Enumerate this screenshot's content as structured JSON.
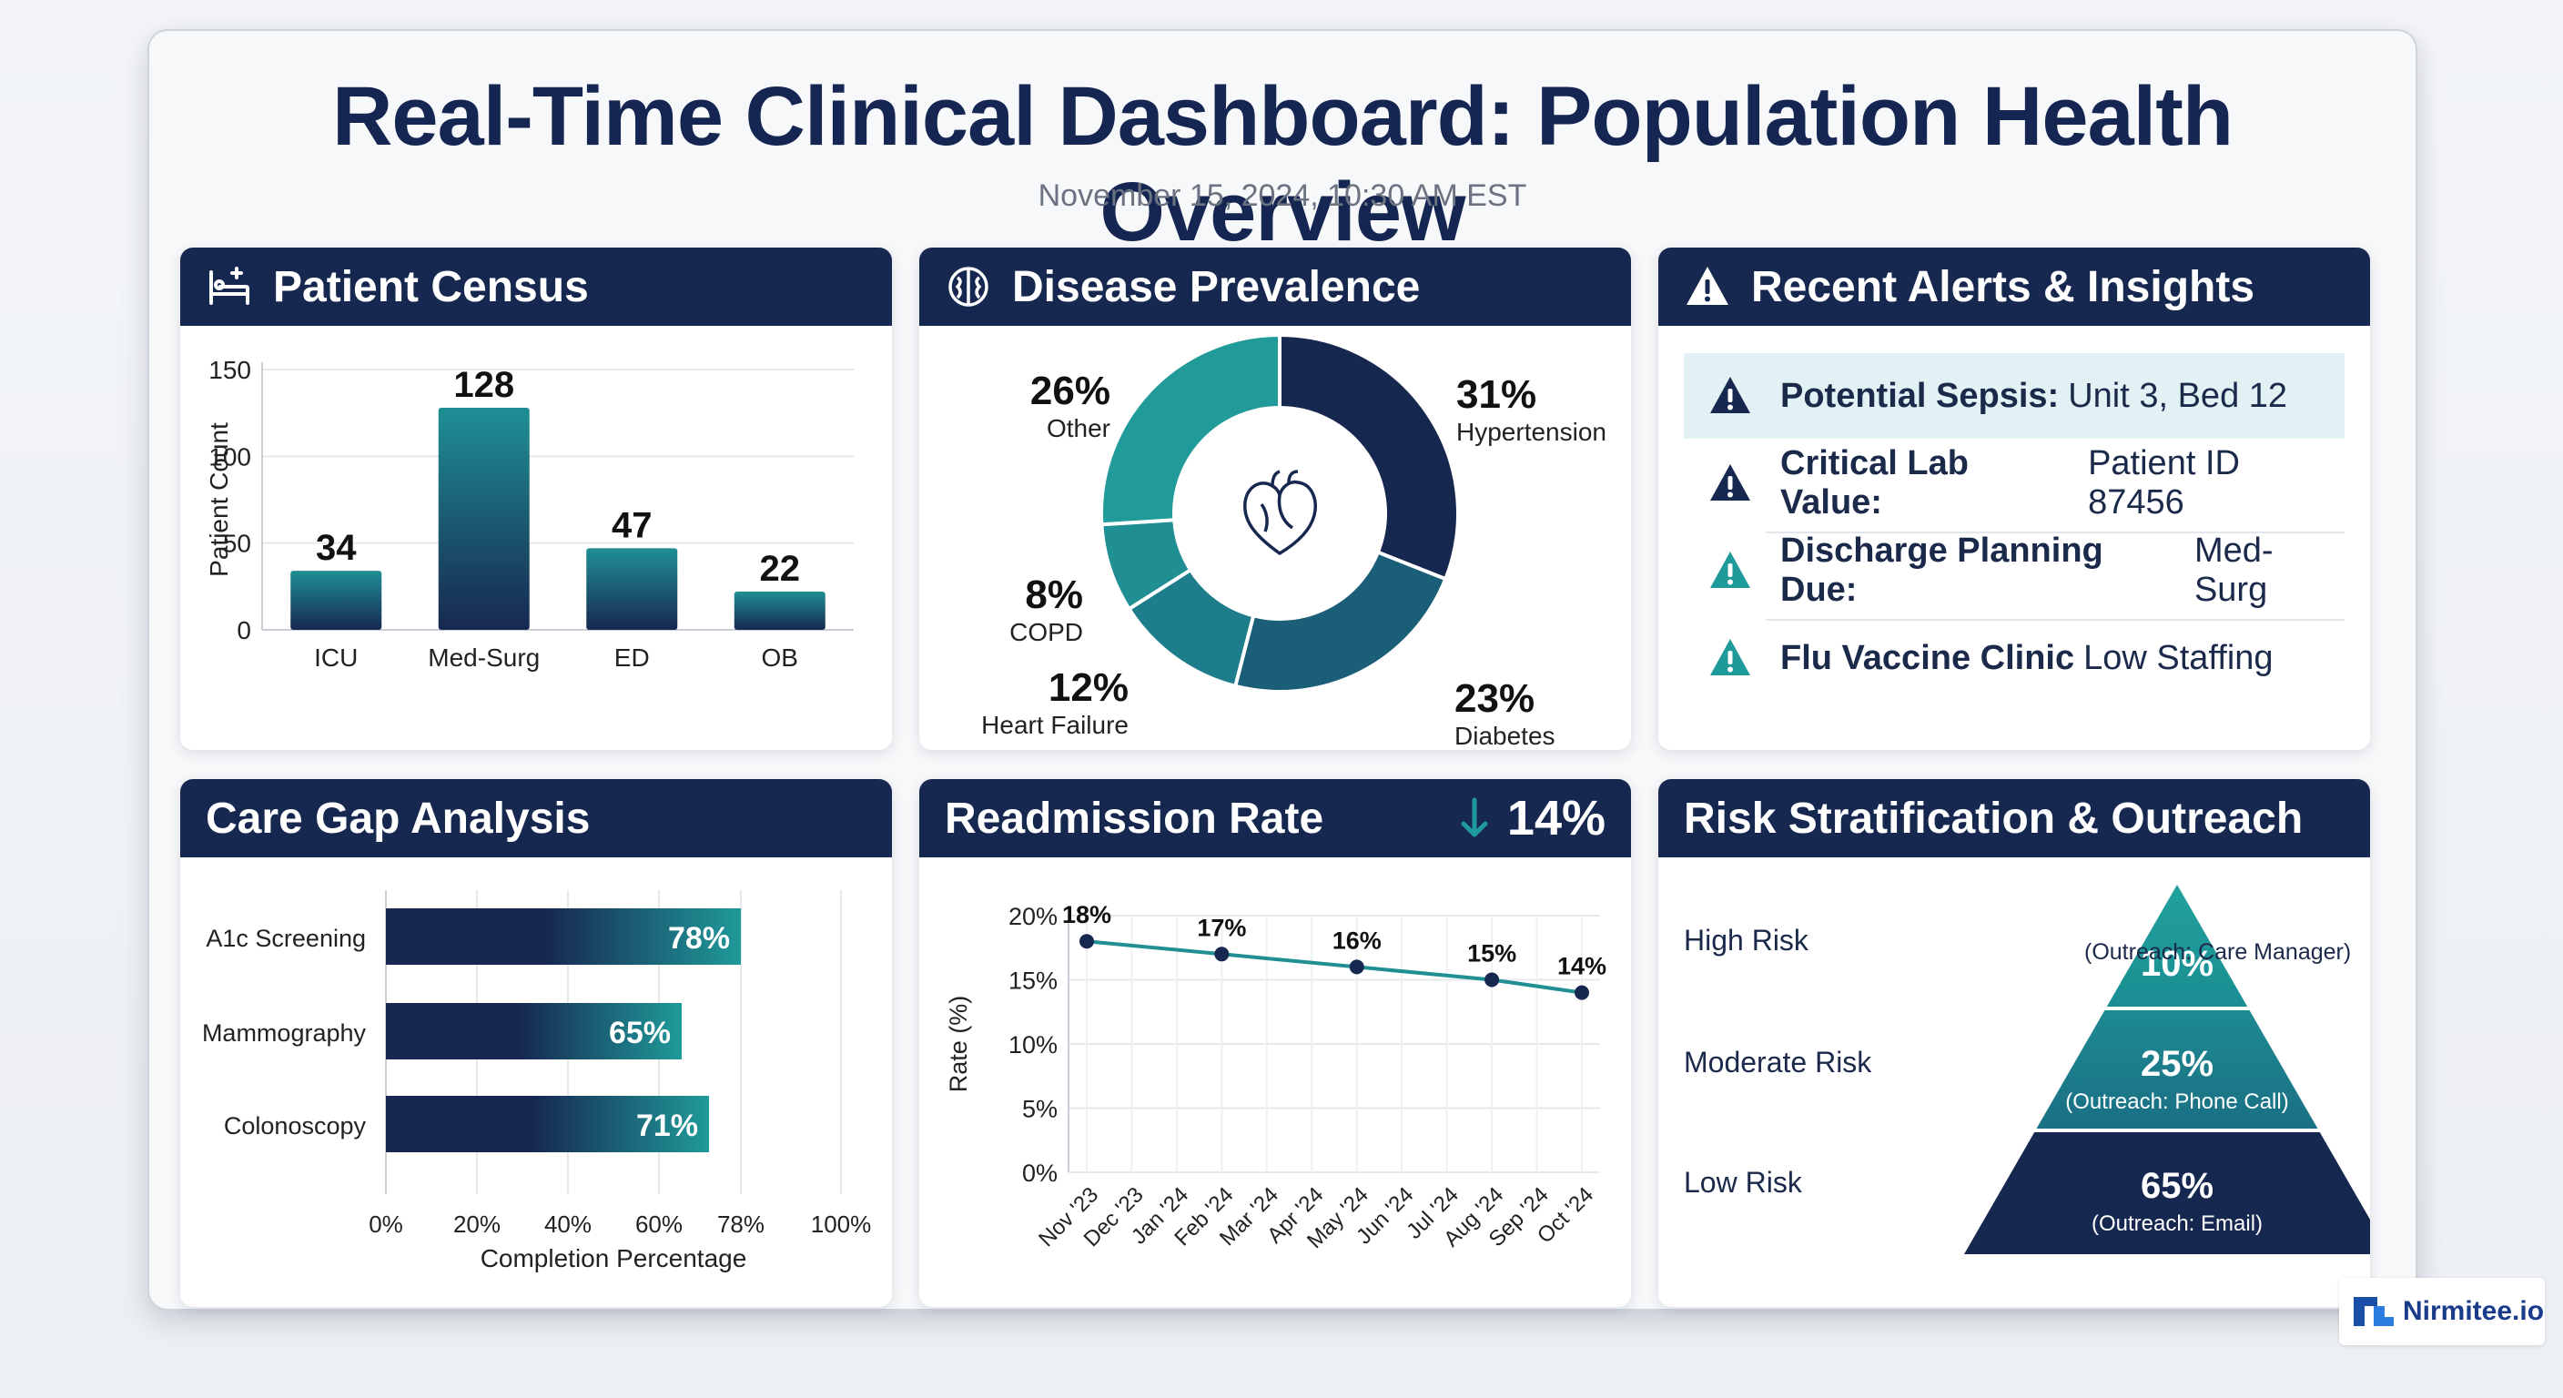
{
  "header": {
    "title": "Real-Time Clinical Dashboard: Population Health Overview",
    "timestamp": "November 15, 2024, 10:30 AM EST"
  },
  "colors": {
    "navy": "#172850",
    "teal": "#1f9a9a",
    "mid_teal": "#1a7586",
    "highlight": "#e2f1f3"
  },
  "census": {
    "title": "Patient Census",
    "icon": "hospital-bed-icon",
    "chart_data": {
      "type": "bar",
      "ylabel": "Patient Count",
      "ylim": [
        0,
        150
      ],
      "yticks": [
        "0",
        "50",
        "100",
        "150"
      ],
      "categories": [
        "ICU",
        "Med-Surg",
        "ED",
        "OB"
      ],
      "values": [
        34,
        128,
        47,
        22
      ],
      "value_labels": [
        "34",
        "128",
        "47",
        "22"
      ]
    }
  },
  "prevalence": {
    "title": "Disease Prevalence",
    "icon": "brain-icon",
    "center_icon": "heart-icon",
    "chart_data": {
      "type": "pie",
      "slices": [
        {
          "label": "Hypertension",
          "value": 31,
          "pct": "31%"
        },
        {
          "label": "Diabetes",
          "value": 23,
          "pct": "23%"
        },
        {
          "label": "Heart Failure",
          "value": 12,
          "pct": "12%"
        },
        {
          "label": "COPD",
          "value": 8,
          "pct": "8%"
        },
        {
          "label": "Other",
          "value": 26,
          "pct": "26%"
        }
      ]
    }
  },
  "alerts": {
    "title": "Recent Alerts & Insights",
    "icon": "warning-icon",
    "items": [
      {
        "bold": "Potential Sepsis:",
        "text": "Unit 3, Bed 12",
        "severity": "critical"
      },
      {
        "bold": "Critical Lab Value:",
        "text": "Patient ID 87456",
        "severity": "critical"
      },
      {
        "bold": "Discharge Planning Due:",
        "text": "Med-Surg",
        "severity": "info"
      },
      {
        "bold": "Flu Vaccine Clinic",
        "text": "Low Staffing",
        "severity": "info"
      }
    ]
  },
  "care_gap": {
    "title": "Care Gap Analysis",
    "chart_data": {
      "type": "bar",
      "orientation": "horizontal",
      "xlabel": "Completion Percentage",
      "xlim": [
        0,
        100
      ],
      "xticks": [
        "0%",
        "20%",
        "40%",
        "60%",
        "78%",
        "100%"
      ],
      "categories": [
        "A1c Screening",
        "Mammography",
        "Colonoscopy"
      ],
      "values": [
        78,
        65,
        71
      ],
      "value_labels": [
        "78%",
        "65%",
        "71%"
      ]
    }
  },
  "readmission": {
    "title": "Readmission Rate",
    "trend_icon": "arrow-down-icon",
    "trend_value": "14%",
    "chart_data": {
      "type": "line",
      "ylabel": "Rate (%)",
      "ylim": [
        0,
        20
      ],
      "yticks": [
        "0%",
        "5%",
        "10%",
        "15%",
        "20%"
      ],
      "categories": [
        "Nov '23",
        "Dec '23",
        "Jan '24",
        "Feb '24",
        "Mar '24",
        "Apr '24",
        "May '24",
        "Jun '24",
        "Jul '24",
        "Aug '24",
        "Sep '24",
        "Oct '24"
      ],
      "points": [
        {
          "index": 0,
          "value": 18,
          "label": "18%"
        },
        {
          "index": 3,
          "value": 17,
          "label": "17%"
        },
        {
          "index": 6,
          "value": 16,
          "label": "16%"
        },
        {
          "index": 9,
          "value": 15,
          "label": "15%"
        },
        {
          "index": 11,
          "value": 14,
          "label": "14%"
        }
      ]
    }
  },
  "risk": {
    "title": "Risk Stratification & Outreach",
    "tiers": [
      {
        "label": "High Risk",
        "pct": "10%",
        "outreach": "(Outreach: Care Manager)"
      },
      {
        "label": "Moderate Risk",
        "pct": "25%",
        "outreach": "(Outreach: Phone Call)"
      },
      {
        "label": "Low Risk",
        "pct": "65%",
        "outreach": "(Outreach: Email)"
      }
    ]
  },
  "brand": {
    "name": "Nirmitee.io",
    "icon": "nirmitee-logo-icon"
  }
}
